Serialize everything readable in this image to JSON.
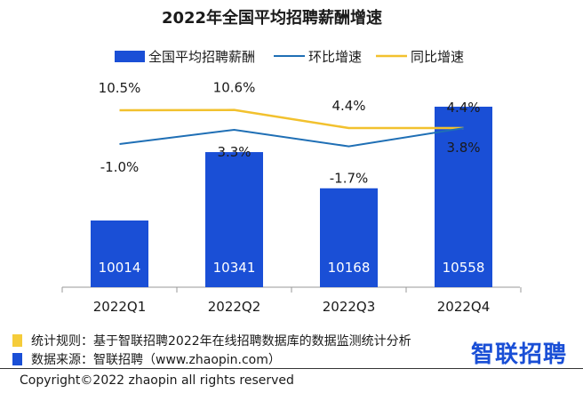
{
  "chart_data": {
    "type": "bar",
    "title": "2022年全国平均招聘薪酬增速",
    "categories": [
      "2022Q1",
      "2022Q2",
      "2022Q3",
      "2022Q4"
    ],
    "series": [
      {
        "name": "全国平均招聘薪酬",
        "type": "bar",
        "values": [
          10014,
          10341,
          10168,
          10558
        ],
        "value_labels": [
          "10014",
          "10341",
          "10168",
          "10558"
        ],
        "color": "#1a4fd6"
      },
      {
        "name": "环比增速",
        "type": "line",
        "values": [
          -1.0,
          3.3,
          -1.7,
          3.8
        ],
        "value_labels": [
          "-1.0%",
          "3.3%",
          "-1.7%",
          "3.8%"
        ],
        "color": "#1f6fb5"
      },
      {
        "name": "同比增速",
        "type": "line",
        "values": [
          10.5,
          10.6,
          4.4,
          4.4
        ],
        "value_labels": [
          "10.5%",
          "10.6%",
          "4.4%",
          "4.4%"
        ],
        "color": "#f2c12e"
      }
    ],
    "legend_position": "top",
    "grid": false
  },
  "footer": {
    "rule_text": "统计规则：基于智联招聘2022年在线招聘数据库的数据监测统计分析",
    "source_text": "数据来源：智联招聘（www.zhaopin.com）",
    "rule_color": "#f5cc3a",
    "source_color": "#1a4fd6",
    "brand": "智联招聘",
    "copyright": "Copyright©2022 zhaopin all rights reserved"
  }
}
